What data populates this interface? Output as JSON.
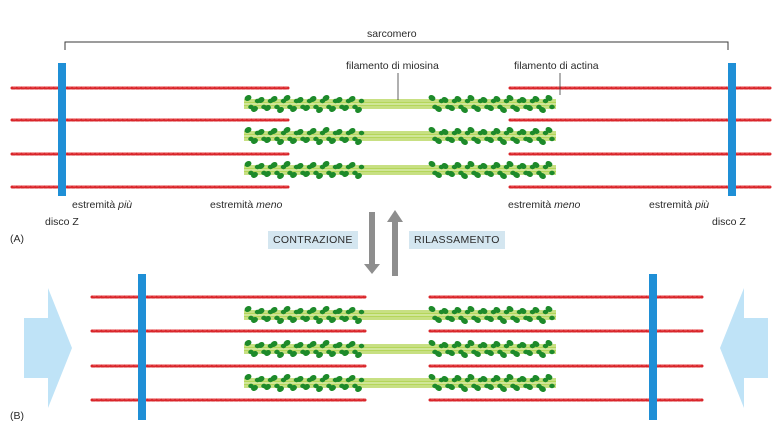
{
  "labels": {
    "sarcomere": "sarcomero",
    "myosin_filament": "filamento di miosina",
    "actin_filament": "filamento di actina",
    "plus_end_prefix": "estremità",
    "plus_end_word": "più",
    "minus_end_prefix": "estremità",
    "minus_end_word": "meno",
    "z_disc": "disco Z",
    "panel_a": "(A)",
    "panel_b": "(B)",
    "contraction": "CONTRAZIONE",
    "relaxation": "RILASSAMENTO"
  },
  "colors": {
    "actin": "#d9262b",
    "z_disc": "#1f8fd6",
    "myosin_head": "#1d8a2a",
    "myosin_tail": "#b5d65a",
    "arrow_gray": "#8e8e8e",
    "push_arrow": "#bfe3f7",
    "label_box": "#d4e6f0",
    "bracket": "#3a3a3a"
  }
}
